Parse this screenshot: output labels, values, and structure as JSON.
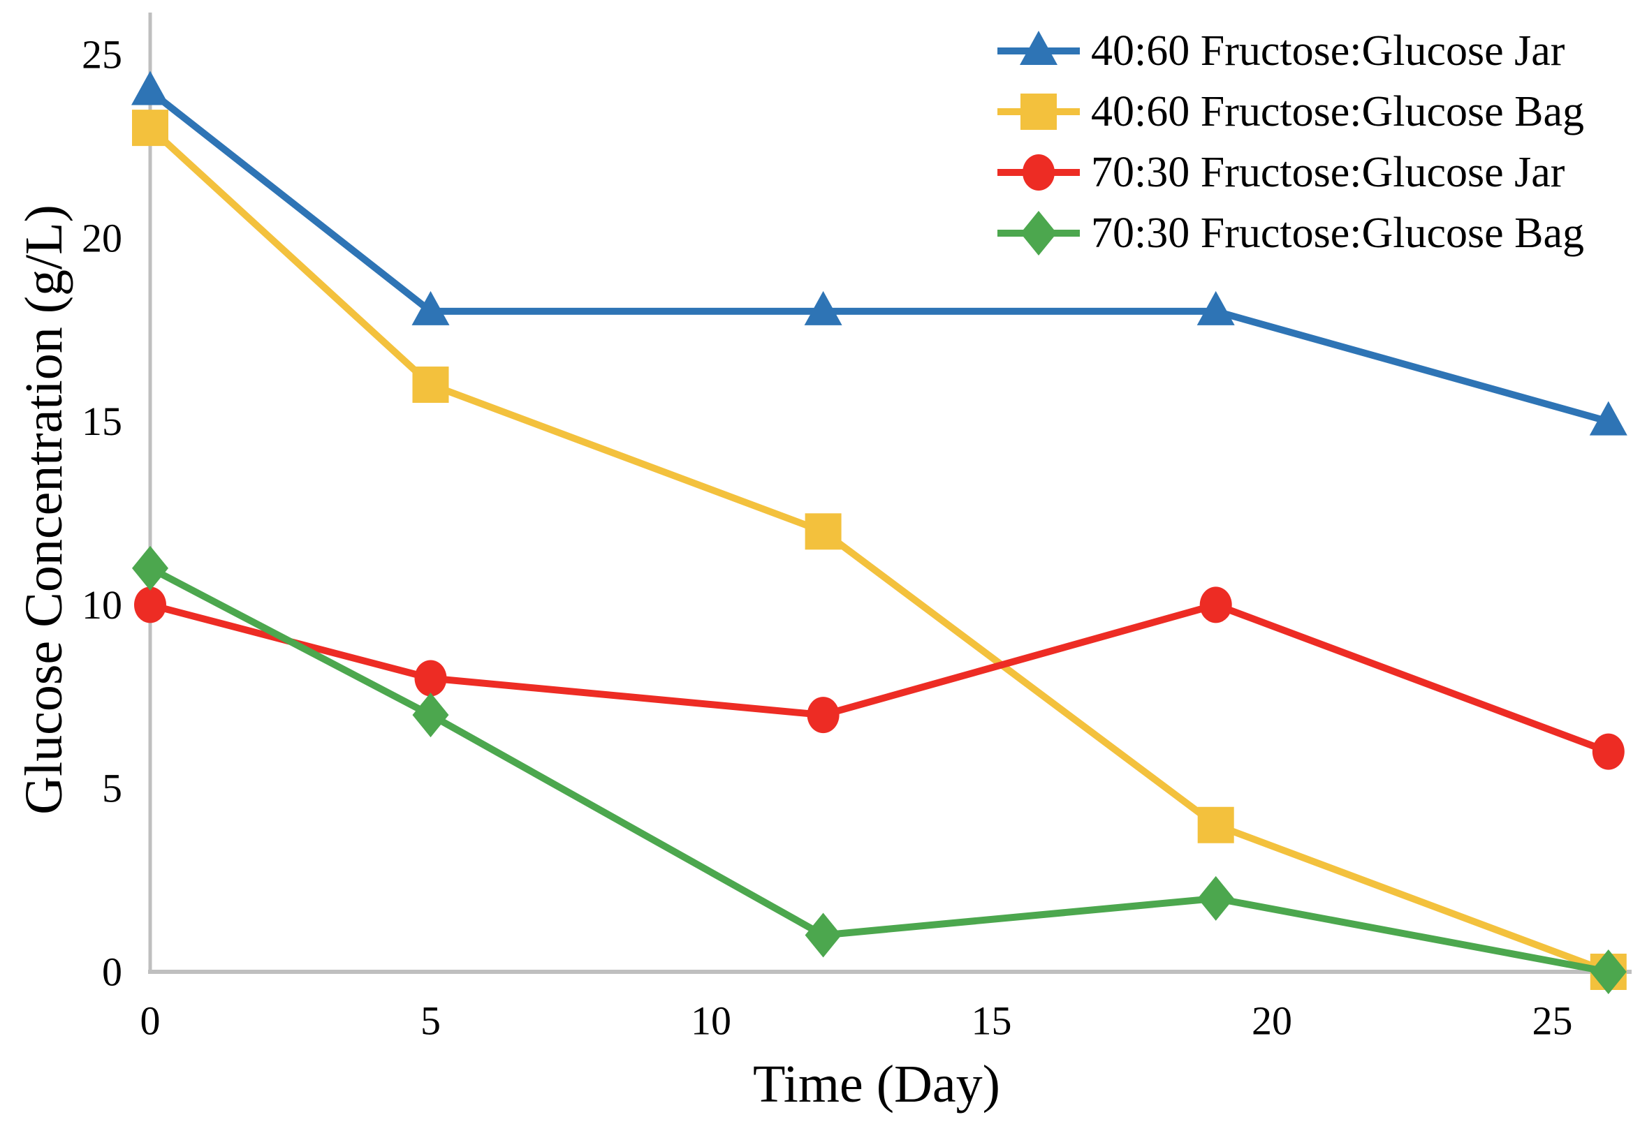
{
  "figure": {
    "background": "#ffffff",
    "text_color": "#000000"
  },
  "chart_data": {
    "type": "line",
    "title": "",
    "xlabel": "Time (Day)",
    "ylabel": "Glucose Concentration (g/L)",
    "x": [
      0,
      5,
      12,
      19,
      26
    ],
    "x_ticks": [
      0,
      5,
      10,
      15,
      20,
      25
    ],
    "y_ticks": [
      0,
      5,
      10,
      15,
      20,
      25
    ],
    "xlim": [
      0,
      26.4
    ],
    "ylim": [
      0,
      26.1
    ],
    "grid": false,
    "legend_position": "top-right",
    "axis_color": "#BFBFBF",
    "series": [
      {
        "name": "40:60 Fructose:Glucose Jar",
        "color": "#2E74B5",
        "marker": "triangle",
        "values": [
          24,
          18,
          18,
          18,
          15
        ]
      },
      {
        "name": "40:60 Fructose:Glucose Bag",
        "color": "#F3C13D",
        "marker": "square",
        "values": [
          23,
          16,
          12,
          4,
          0
        ]
      },
      {
        "name": "70:30 Fructose:Glucose Jar",
        "color": "#ED2C24",
        "marker": "circle",
        "values": [
          10,
          8,
          7,
          10,
          6
        ]
      },
      {
        "name": "70:30 Fructose:Glucose Bag",
        "color": "#4CA74E",
        "marker": "diamond",
        "values": [
          11,
          7,
          1,
          2,
          0
        ]
      }
    ]
  }
}
